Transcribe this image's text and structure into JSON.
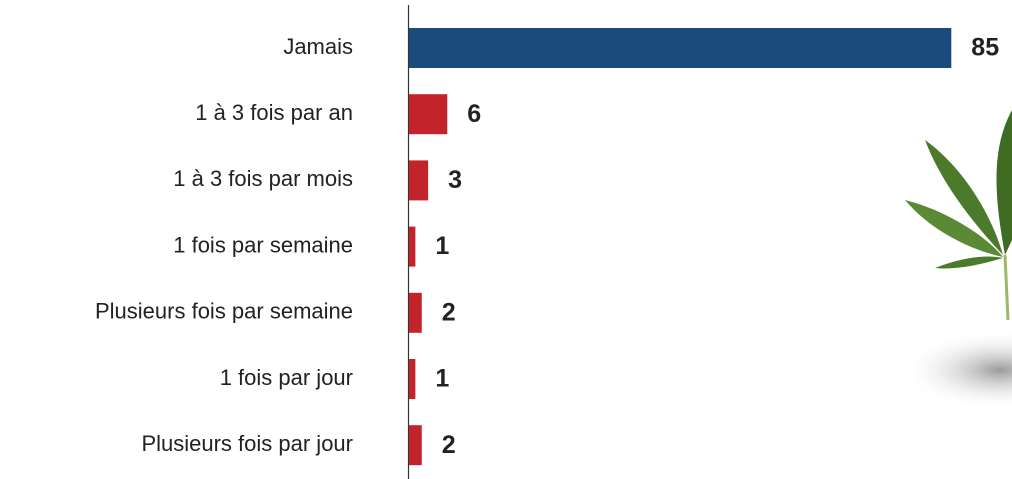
{
  "chart_data": {
    "type": "bar",
    "orientation": "horizontal",
    "categories": [
      "Jamais",
      "1 à 3 fois par an",
      "1 à 3 fois par mois",
      "1 fois par semaine",
      "Plusieurs fois par semaine",
      "1 fois par jour",
      "Plusieurs fois par jour"
    ],
    "values": [
      85,
      6,
      3,
      1,
      2,
      1,
      2
    ],
    "colors": [
      "#1b4b7d",
      "#c3242b",
      "#c3242b",
      "#c3242b",
      "#c3242b",
      "#c3242b",
      "#c3242b"
    ]
  }
}
